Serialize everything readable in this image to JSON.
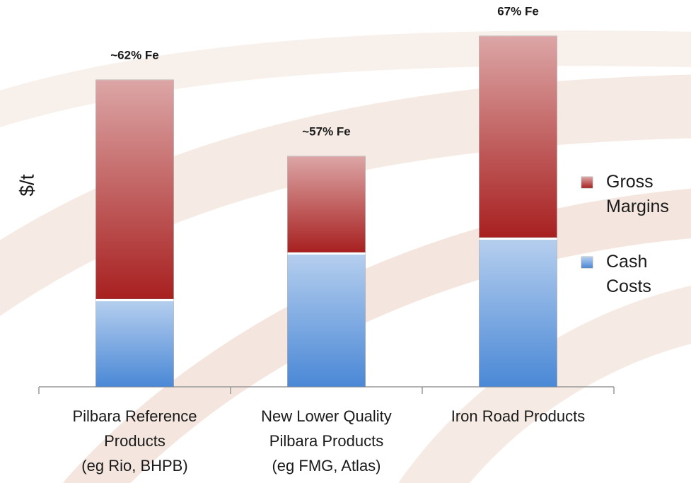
{
  "chart_data": {
    "type": "stacked-bar",
    "ylabel": "$/t",
    "categories": [
      [
        "Pilbara Reference",
        "Products",
        "(eg Rio, BHPB)"
      ],
      [
        "New Lower Quality",
        "Pilbara Products",
        "(eg FMG, Atlas)"
      ],
      [
        "Iron Road Products"
      ]
    ],
    "annotations": [
      "~62% Fe",
      "~57% Fe",
      "67% Fe"
    ],
    "series": [
      {
        "name": "Cash Costs",
        "color": "#4a88d6",
        "values": [
          124,
          190,
          211
        ]
      },
      {
        "name": "Gross Margins",
        "color": "#a82020",
        "values": [
          310,
          136,
          285
        ]
      }
    ],
    "ylim": [
      0,
      500
    ],
    "legend": "right"
  }
}
